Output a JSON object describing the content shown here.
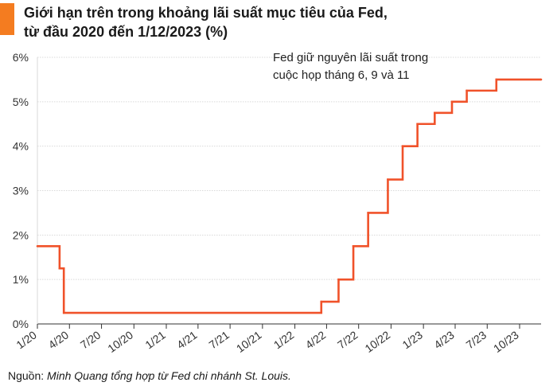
{
  "title_lines": [
    "Giới hạn trên trong khoảng lãi suất mục tiêu của Fed,",
    "từ đầu 2020 đến 1/12/2023 (%)"
  ],
  "source": {
    "prefix": "Nguồn: ",
    "text": "Minh Quang tổng hợp từ Fed chi nhánh St. Louis."
  },
  "colors": {
    "accent": "#f47c20",
    "line": "#f0522a",
    "grid": "#d9d9d9",
    "axis": "#333333"
  },
  "chart_data": {
    "type": "line",
    "title": "Giới hạn trên trong khoảng lãi suất mục tiêu của Fed, từ đầu 2020 đến 1/12/2023 (%)",
    "xlabel": "",
    "ylabel": "",
    "step": true,
    "grid": "horizontal",
    "ylim": [
      0,
      6
    ],
    "xlim": [
      "2020-01-01",
      "2023-12-01"
    ],
    "y_ticks": [
      "0%",
      "1%",
      "2%",
      "3%",
      "4%",
      "5%",
      "6%"
    ],
    "x_ticks": [
      "1/20",
      "4/20",
      "7/20",
      "10/20",
      "1/21",
      "4/21",
      "7/21",
      "10/21",
      "1/22",
      "4/22",
      "7/22",
      "10/22",
      "1/23",
      "4/23",
      "7/23",
      "10/23"
    ],
    "annotation": [
      "Fed giữ nguyên lãi suất trong",
      "cuộc họp tháng 6, 9 và 11"
    ],
    "series": [
      {
        "x": [
          "2020-01-01",
          "2020-03-04",
          "2020-03-16",
          "2022-03-17",
          "2022-05-05",
          "2022-06-16",
          "2022-07-28",
          "2022-09-22",
          "2022-11-03",
          "2022-12-15",
          "2023-02-02",
          "2023-03-23",
          "2023-05-04",
          "2023-07-27",
          "2023-12-01"
        ],
        "values": [
          1.75,
          1.25,
          0.25,
          0.5,
          1.0,
          1.75,
          2.5,
          3.25,
          4.0,
          4.5,
          4.75,
          5.0,
          5.25,
          5.5,
          5.5
        ]
      }
    ]
  }
}
